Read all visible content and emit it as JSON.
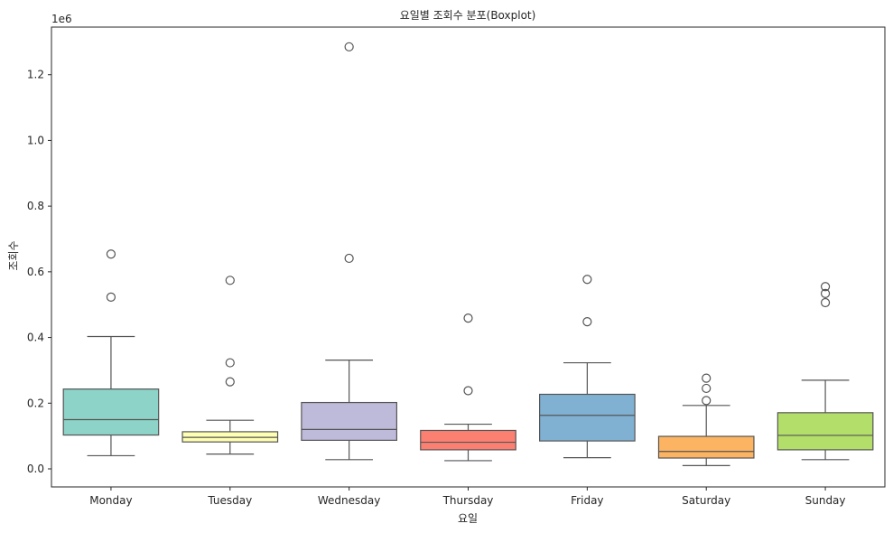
{
  "chart_data": {
    "type": "boxplot",
    "title": "요일별 조회수 분포(Boxplot)",
    "xlabel": "요일",
    "ylabel": "조회수",
    "y_offset_label": "1e6",
    "ylim": [
      -55000,
      1345000
    ],
    "y_ticks": [
      0,
      200000,
      400000,
      600000,
      800000,
      1000000,
      1200000
    ],
    "y_tick_labels": [
      "0.0",
      "0.2",
      "0.4",
      "0.6",
      "0.8",
      "1.0",
      "1.2"
    ],
    "grid": false,
    "categories": [
      "Monday",
      "Tuesday",
      "Wednesday",
      "Thursday",
      "Friday",
      "Saturday",
      "Sunday"
    ],
    "boxes": [
      {
        "name": "Monday",
        "whisker_low": 40000,
        "q1": 103000,
        "median": 150000,
        "q3": 243000,
        "whisker_high": 403000,
        "outliers": [
          523000,
          654000
        ],
        "color": "#8dd3c7"
      },
      {
        "name": "Tuesday",
        "whisker_low": 45000,
        "q1": 82000,
        "median": 96000,
        "q3": 113000,
        "whisker_high": 148000,
        "outliers": [
          265000,
          323000,
          574000
        ],
        "color": "#ffffb3"
      },
      {
        "name": "Wednesday",
        "whisker_low": 28000,
        "q1": 87000,
        "median": 120000,
        "q3": 202000,
        "whisker_high": 331000,
        "outliers": [
          641000,
          1285000
        ],
        "color": "#bebada"
      },
      {
        "name": "Thursday",
        "whisker_low": 25000,
        "q1": 58000,
        "median": 81000,
        "q3": 117000,
        "whisker_high": 136000,
        "outliers": [
          238000,
          459000
        ],
        "color": "#fb8072"
      },
      {
        "name": "Friday",
        "whisker_low": 34000,
        "q1": 85000,
        "median": 163000,
        "q3": 227000,
        "whisker_high": 323000,
        "outliers": [
          448000,
          577000
        ],
        "color": "#80b1d3"
      },
      {
        "name": "Saturday",
        "whisker_low": 10000,
        "q1": 33000,
        "median": 53000,
        "q3": 99000,
        "whisker_high": 193000,
        "outliers": [
          208000,
          245000,
          276000
        ],
        "color": "#fdb462"
      },
      {
        "name": "Sunday",
        "whisker_low": 28000,
        "q1": 58000,
        "median": 102000,
        "q3": 171000,
        "whisker_high": 270000,
        "outliers": [
          506000,
          534000,
          555000
        ],
        "color": "#b3de69"
      }
    ]
  }
}
